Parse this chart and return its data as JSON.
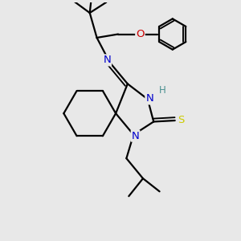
{
  "bg_color": "#e8e8e8",
  "atom_colors": {
    "C": "#000000",
    "N": "#0000cc",
    "O": "#cc0000",
    "S": "#cccc00",
    "H": "#4a9090"
  },
  "bond_color": "#000000",
  "bond_width": 1.6,
  "font_size": 9.5,
  "figsize": [
    3.0,
    3.0
  ],
  "dpi": 100
}
